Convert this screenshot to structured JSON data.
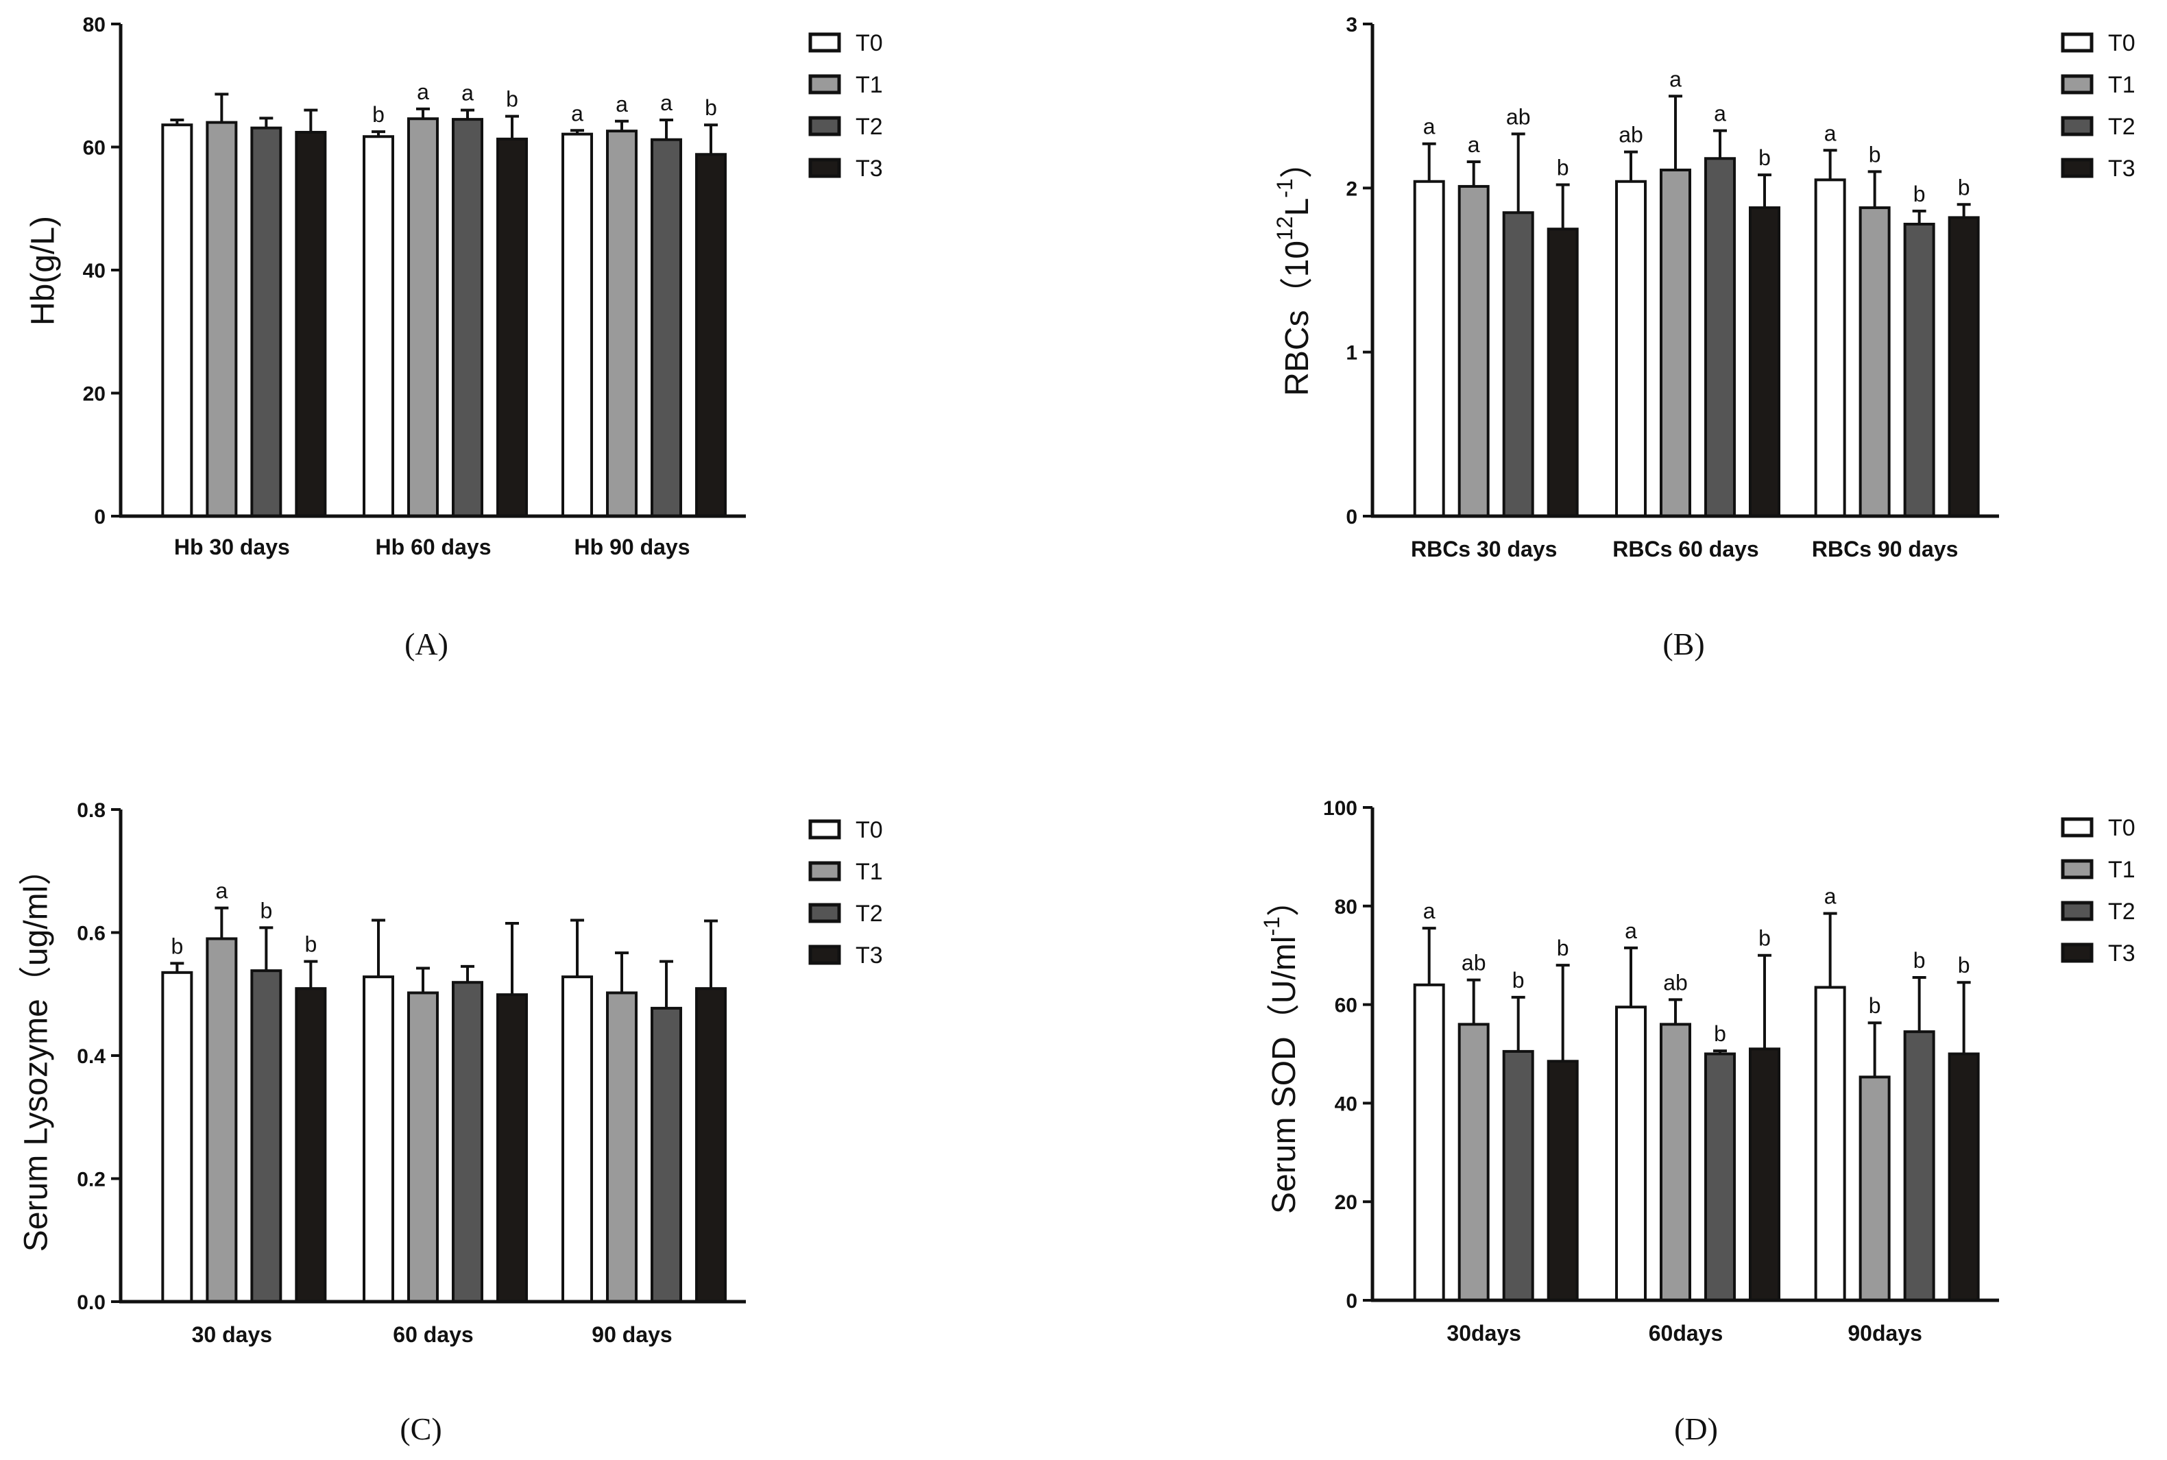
{
  "legend_labels": [
    "T0",
    "T1",
    "T2",
    "T3"
  ],
  "series_colors": [
    "#ffffff",
    "#9a9a9a",
    "#555555",
    "#1c1917"
  ],
  "chart_data": [
    {
      "type": "bar",
      "panel_label": "(A)",
      "title": "",
      "ylabel": "Hb(g/L)",
      "xlabel": "",
      "ylim": [
        0,
        80
      ],
      "yticks": [
        "0",
        "20",
        "40",
        "60",
        "80"
      ],
      "categories": [
        "Hb 30 days",
        "Hb 60 days",
        "Hb 90 days"
      ],
      "series": [
        {
          "name": "T0",
          "values": [
            63.6,
            61.7,
            62.1
          ],
          "errors": [
            0.8,
            0.8,
            0.6
          ],
          "letters": [
            "",
            "b",
            "a"
          ]
        },
        {
          "name": "T1",
          "values": [
            64.0,
            64.6,
            62.6
          ],
          "errors": [
            4.6,
            1.6,
            1.6
          ],
          "letters": [
            "",
            "a",
            "a"
          ]
        },
        {
          "name": "T2",
          "values": [
            63.1,
            64.5,
            61.2
          ],
          "errors": [
            1.6,
            1.5,
            3.2
          ],
          "letters": [
            "",
            "a",
            "a"
          ]
        },
        {
          "name": "T3",
          "values": [
            62.4,
            61.3,
            58.8
          ],
          "errors": [
            3.6,
            3.7,
            4.8
          ],
          "letters": [
            "",
            "b",
            "b"
          ]
        }
      ]
    },
    {
      "type": "bar",
      "panel_label": "(B)",
      "title": "",
      "ylabel": "RBCs(10¹²L⁻¹)",
      "ylabel_main": "RBCs",
      "ylabel_paren_open": "（",
      "ylabel_base": "10",
      "ylabel_exp1": "12",
      "ylabel_unit": "L",
      "ylabel_exp2": "-1",
      "ylabel_paren_close": "）",
      "xlabel": "",
      "ylim": [
        0,
        3
      ],
      "yticks": [
        "0",
        "1",
        "2",
        "3"
      ],
      "categories": [
        "RBCs 30 days",
        "RBCs 60 days",
        "RBCs 90 days"
      ],
      "series": [
        {
          "name": "T0",
          "values": [
            2.04,
            2.04,
            2.05
          ],
          "errors": [
            0.23,
            0.18,
            0.18
          ],
          "letters": [
            "a",
            "ab",
            "a"
          ]
        },
        {
          "name": "T1",
          "values": [
            2.01,
            2.11,
            1.88
          ],
          "errors": [
            0.15,
            0.45,
            0.22
          ],
          "letters": [
            "a",
            "a",
            "b"
          ]
        },
        {
          "name": "T2",
          "values": [
            1.85,
            2.18,
            1.78
          ],
          "errors": [
            0.48,
            0.17,
            0.08
          ],
          "letters": [
            "ab",
            "a",
            "b"
          ]
        },
        {
          "name": "T3",
          "values": [
            1.75,
            1.88,
            1.82
          ],
          "errors": [
            0.27,
            0.2,
            0.08
          ],
          "letters": [
            "b",
            "b",
            "b"
          ]
        }
      ]
    },
    {
      "type": "bar",
      "panel_label": "(C)",
      "title": "",
      "ylabel": "Serum Lysozyme（ug/ml）",
      "xlabel": "",
      "ylim": [
        0,
        0.8
      ],
      "yticks": [
        "0.0",
        "0.2",
        "0.4",
        "0.6",
        "0.8"
      ],
      "categories": [
        "30 days",
        "60 days",
        "90 days"
      ],
      "series": [
        {
          "name": "T0",
          "values": [
            0.535,
            0.528,
            0.528
          ],
          "errors": [
            0.015,
            0.092,
            0.092
          ],
          "letters": [
            "b",
            "",
            ""
          ]
        },
        {
          "name": "T1",
          "values": [
            0.59,
            0.502,
            0.502
          ],
          "errors": [
            0.05,
            0.04,
            0.065
          ],
          "letters": [
            "a",
            "",
            ""
          ]
        },
        {
          "name": "T2",
          "values": [
            0.538,
            0.519,
            0.477
          ],
          "errors": [
            0.07,
            0.026,
            0.076
          ],
          "letters": [
            "b",
            "",
            ""
          ]
        },
        {
          "name": "T3",
          "values": [
            0.509,
            0.499,
            0.509
          ],
          "errors": [
            0.044,
            0.116,
            0.11
          ],
          "letters": [
            "b",
            "",
            ""
          ]
        }
      ]
    },
    {
      "type": "bar",
      "panel_label": "(D)",
      "title": "",
      "ylabel": "Serum SOD（U/ml⁻¹）",
      "ylabel_main": "Serum SOD",
      "ylabel_paren_open": "（",
      "ylabel_unit": "U/ml",
      "ylabel_exp": "-1",
      "ylabel_paren_close": "）",
      "xlabel": "",
      "ylim": [
        0,
        100
      ],
      "yticks": [
        "0",
        "20",
        "40",
        "60",
        "80",
        "100"
      ],
      "categories": [
        "30days",
        "60days",
        "90days"
      ],
      "series": [
        {
          "name": "T0",
          "values": [
            64.0,
            59.5,
            63.5
          ],
          "errors": [
            11.5,
            12.0,
            15.0
          ],
          "letters": [
            "a",
            "a",
            "a"
          ]
        },
        {
          "name": "T1",
          "values": [
            56.0,
            56.0,
            45.3
          ],
          "errors": [
            9.0,
            5.0,
            11.0
          ],
          "letters": [
            "ab",
            "ab",
            "b"
          ]
        },
        {
          "name": "T2",
          "values": [
            50.5,
            50.0,
            54.5
          ],
          "errors": [
            11.0,
            0.6,
            11.0
          ],
          "letters": [
            "b",
            "b",
            "b"
          ]
        },
        {
          "name": "T3",
          "values": [
            48.5,
            51.0,
            50.0
          ],
          "errors": [
            19.5,
            19.0,
            14.5
          ],
          "letters": [
            "b",
            "b",
            "b"
          ]
        }
      ]
    }
  ]
}
